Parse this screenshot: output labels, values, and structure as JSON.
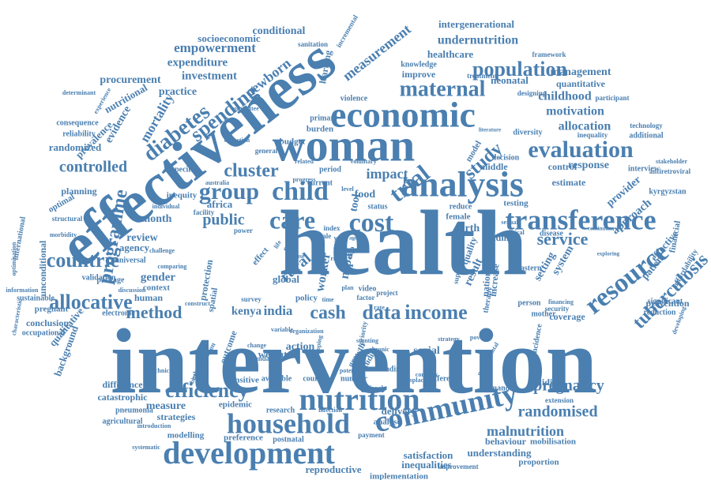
{
  "colors": {
    "word": "#4a7fb0",
    "background": "#ffffff"
  },
  "words": [
    {
      "text": "intervention"
    },
    {
      "text": "health"
    },
    {
      "text": "effectiveness"
    },
    {
      "text": "woman"
    },
    {
      "text": "economic"
    },
    {
      "text": "analysis"
    },
    {
      "text": "community"
    },
    {
      "text": "development"
    },
    {
      "text": "nutrition"
    },
    {
      "text": "household"
    },
    {
      "text": "transference"
    },
    {
      "text": "resource"
    },
    {
      "text": "child"
    },
    {
      "text": "care"
    },
    {
      "text": "cost"
    },
    {
      "text": "trial"
    },
    {
      "text": "diabetes"
    },
    {
      "text": "spending"
    },
    {
      "text": "maternal"
    },
    {
      "text": "population"
    },
    {
      "text": "evaluation"
    },
    {
      "text": "group"
    },
    {
      "text": "cluster"
    },
    {
      "text": "programme"
    },
    {
      "text": "countrie"
    },
    {
      "text": "allocative"
    },
    {
      "text": "efficiency"
    },
    {
      "text": "pregnancy"
    },
    {
      "text": "randomised"
    },
    {
      "text": "malnutrition"
    },
    {
      "text": "tuberculosis"
    },
    {
      "text": "data"
    },
    {
      "text": "income"
    },
    {
      "text": "cash"
    },
    {
      "text": "method"
    },
    {
      "text": "service"
    },
    {
      "text": "study"
    },
    {
      "text": "impact"
    },
    {
      "text": "controlled"
    },
    {
      "text": "empowerment"
    },
    {
      "text": "measurement"
    },
    {
      "text": "undernutrition"
    },
    {
      "text": "newborn"
    },
    {
      "text": "childhood"
    },
    {
      "text": "motivation"
    },
    {
      "text": "allocation"
    },
    {
      "text": "socioeconomic"
    },
    {
      "text": "conditional"
    },
    {
      "text": "intergenerational"
    },
    {
      "text": "healthcare"
    },
    {
      "text": "expenditure"
    },
    {
      "text": "investment"
    },
    {
      "text": "procurement"
    },
    {
      "text": "practice"
    },
    {
      "text": "mortality"
    },
    {
      "text": "evidence"
    },
    {
      "text": "prevalence"
    },
    {
      "text": "randomized"
    },
    {
      "text": "nutritional"
    },
    {
      "text": "neonatal"
    },
    {
      "text": "quantitative"
    },
    {
      "text": "management"
    },
    {
      "text": "public"
    },
    {
      "text": "month"
    },
    {
      "text": "review"
    },
    {
      "text": "agency"
    },
    {
      "text": "gender"
    },
    {
      "text": "rural"
    },
    {
      "text": "kenya"
    },
    {
      "text": "india"
    },
    {
      "text": "worker"
    },
    {
      "text": "nepal"
    },
    {
      "text": "result"
    },
    {
      "text": "birth"
    },
    {
      "text": "food"
    },
    {
      "text": "tool"
    },
    {
      "text": "global"
    },
    {
      "text": "action"
    },
    {
      "text": "social"
    },
    {
      "text": "weight"
    },
    {
      "text": "delivery"
    },
    {
      "text": "reproductive"
    },
    {
      "text": "inequalities"
    },
    {
      "text": "implementation"
    },
    {
      "text": "satisfaction"
    },
    {
      "text": "understanding"
    },
    {
      "text": "behaviour"
    },
    {
      "text": "proportion"
    },
    {
      "text": "mobilisation"
    },
    {
      "text": "coverage"
    },
    {
      "text": "prevention"
    },
    {
      "text": "system"
    },
    {
      "text": "setting"
    },
    {
      "text": "approach"
    },
    {
      "text": "provider"
    },
    {
      "text": "response"
    },
    {
      "text": "control"
    },
    {
      "text": "middle"
    },
    {
      "text": "estimate"
    },
    {
      "text": "testing"
    },
    {
      "text": "patient"
    },
    {
      "text": "effective"
    },
    {
      "text": "financial"
    },
    {
      "text": "affordability"
    },
    {
      "text": "reduction"
    },
    {
      "text": "significant"
    },
    {
      "text": "kyrgyzstan"
    },
    {
      "text": "antiretroviral"
    },
    {
      "text": "interview"
    },
    {
      "text": "additional"
    },
    {
      "text": "qualitative"
    },
    {
      "text": "background"
    },
    {
      "text": "unconditional"
    },
    {
      "text": "international"
    },
    {
      "text": "conclusion"
    },
    {
      "text": "difference"
    },
    {
      "text": "catastrophic"
    },
    {
      "text": "measure"
    },
    {
      "text": "strategies"
    },
    {
      "text": "modelling"
    },
    {
      "text": "pneumonia"
    },
    {
      "text": "agricultural"
    },
    {
      "text": "epidemic"
    },
    {
      "text": "sensitive"
    },
    {
      "text": "available"
    },
    {
      "text": "research"
    },
    {
      "text": "preference"
    },
    {
      "text": "postnatal"
    },
    {
      "text": "analyse"
    },
    {
      "text": "validity"
    },
    {
      "text": "demand"
    },
    {
      "text": "extension"
    },
    {
      "text": "different"
    },
    {
      "text": "country"
    },
    {
      "text": "number"
    },
    {
      "text": "outcome"
    },
    {
      "text": "protection"
    },
    {
      "text": "human"
    },
    {
      "text": "context"
    },
    {
      "text": "policy"
    },
    {
      "text": "equity"
    },
    {
      "text": "national"
    },
    {
      "text": "increase"
    },
    {
      "text": "finding"
    },
    {
      "text": "quality"
    },
    {
      "text": "female"
    },
    {
      "text": "reduce"
    },
    {
      "text": "primary"
    },
    {
      "text": "burden"
    },
    {
      "text": "budget"
    },
    {
      "text": "general"
    },
    {
      "text": "period"
    },
    {
      "text": "current"
    },
    {
      "text": "status"
    },
    {
      "text": "inequity"
    },
    {
      "text": "africa"
    },
    {
      "text": "facility"
    },
    {
      "text": "planning"
    },
    {
      "text": "optimal"
    },
    {
      "text": "reliability"
    },
    {
      "text": "consequence"
    },
    {
      "text": "structural"
    },
    {
      "text": "pregnant"
    },
    {
      "text": "sustainable"
    },
    {
      "text": "validation"
    },
    {
      "text": "universal"
    },
    {
      "text": "package"
    },
    {
      "text": "electronic"
    },
    {
      "text": "occupational"
    },
    {
      "text": "learning"
    },
    {
      "text": "sanitation"
    },
    {
      "text": "incremental"
    },
    {
      "text": "framework"
    },
    {
      "text": "improve"
    },
    {
      "text": "knowledge"
    },
    {
      "text": "treatment"
    },
    {
      "text": "designing"
    },
    {
      "text": "participant"
    },
    {
      "text": "violence"
    },
    {
      "text": "diversity"
    },
    {
      "text": "inequality"
    },
    {
      "text": "decision"
    },
    {
      "text": "technology"
    },
    {
      "text": "stakeholder"
    },
    {
      "text": "model"
    },
    {
      "text": "specific"
    },
    {
      "text": "disease"
    },
    {
      "text": "eastern"
    },
    {
      "text": "person"
    },
    {
      "text": "mother"
    },
    {
      "text": "incidence"
    },
    {
      "text": "security"
    },
    {
      "text": "financing"
    },
    {
      "text": "growth"
    },
    {
      "text": "studies"
    },
    {
      "text": "funding"
    },
    {
      "text": "project"
    },
    {
      "text": "video"
    },
    {
      "text": "factor"
    },
    {
      "text": "therapy"
    },
    {
      "text": "support"
    },
    {
      "text": "survey"
    },
    {
      "text": "standard"
    },
    {
      "text": "effect"
    },
    {
      "text": "spatial"
    },
    {
      "text": "power"
    },
    {
      "text": "scale"
    },
    {
      "text": "index"
    },
    {
      "text": "priority"
    },
    {
      "text": "information"
    },
    {
      "text": "discussion"
    },
    {
      "text": "concentration"
    },
    {
      "text": "birthweight"
    },
    {
      "text": "systematic"
    },
    {
      "text": "introduction"
    },
    {
      "text": "payment"
    },
    {
      "text": "improvement"
    },
    {
      "text": "complex"
    },
    {
      "text": "displaced"
    },
    {
      "text": "potential"
    },
    {
      "text": "sexual"
    },
    {
      "text": "political"
    },
    {
      "text": "continuum"
    },
    {
      "text": "exploring"
    },
    {
      "text": "infection"
    },
    {
      "text": "coping"
    },
    {
      "text": "chronic"
    },
    {
      "text": "determinant"
    },
    {
      "text": "experience"
    },
    {
      "text": "morbidity"
    },
    {
      "text": "comparing"
    },
    {
      "text": "challenge"
    },
    {
      "text": "individual"
    },
    {
      "text": "collection"
    },
    {
      "text": "voluntary"
    },
    {
      "text": "progress"
    },
    {
      "text": "strategy"
    },
    {
      "text": "poverty"
    },
    {
      "text": "sectional"
    },
    {
      "text": "committee"
    },
    {
      "text": "variable"
    },
    {
      "text": "related"
    },
    {
      "text": "literature"
    },
    {
      "text": "stunting"
    },
    {
      "text": "developing"
    },
    {
      "text": "technical"
    },
    {
      "text": "governmental"
    },
    {
      "text": "change"
    },
    {
      "text": "construct"
    },
    {
      "text": "optimisation"
    },
    {
      "text": "characteristic"
    },
    {
      "text": "organization"
    },
    {
      "text": "australia"
    },
    {
      "text": "level"
    },
    {
      "text": "year"
    },
    {
      "text": "case"
    },
    {
      "text": "risk"
    },
    {
      "text": "high"
    },
    {
      "text": "time"
    },
    {
      "text": "age"
    },
    {
      "text": "life"
    },
    {
      "text": "use"
    },
    {
      "text": "rate"
    },
    {
      "text": "plan"
    }
  ]
}
